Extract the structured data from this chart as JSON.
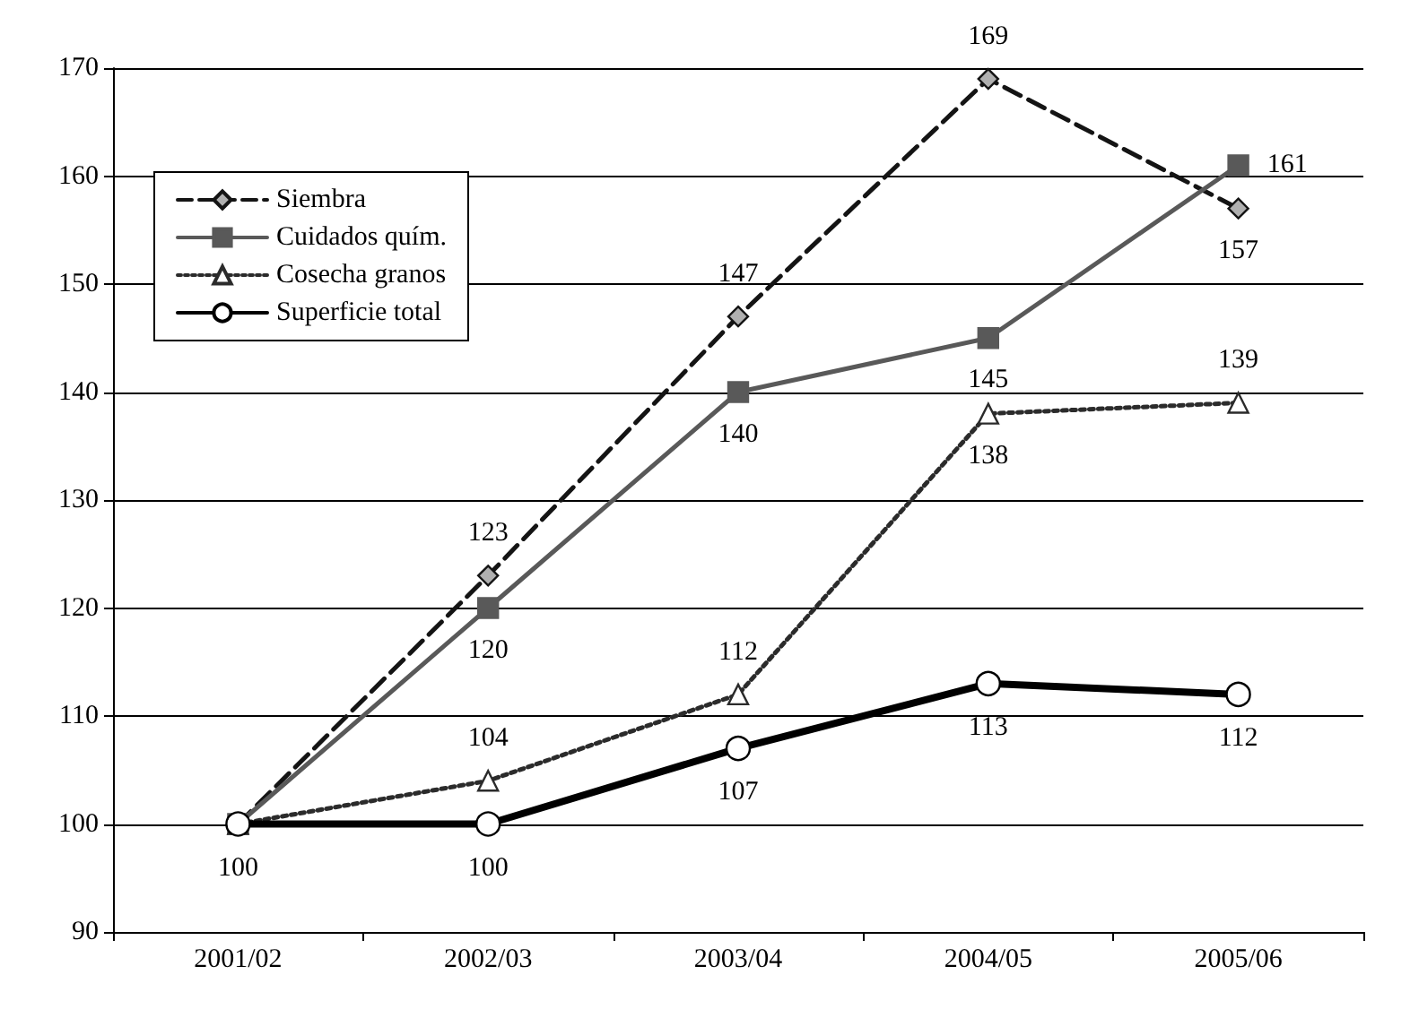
{
  "chart_data": {
    "type": "line",
    "categories": [
      "2001/02",
      "2002/03",
      "2003/04",
      "2004/05",
      "2005/06"
    ],
    "series": [
      {
        "name": "Siembra",
        "color": "#141414",
        "marker": "diamond",
        "line_style": "dashed",
        "values": [
          100,
          123,
          147,
          169,
          157
        ],
        "value_labels": [
          null,
          "123",
          "147",
          "169",
          "157"
        ]
      },
      {
        "name": "Cuidados quím.",
        "color": "#595959",
        "marker": "square",
        "line_style": "solid",
        "values": [
          100,
          120,
          140,
          145,
          161
        ],
        "value_labels": [
          null,
          "120",
          "140",
          "145",
          "161"
        ]
      },
      {
        "name": "Cosecha granos",
        "color": "#2b2b2b",
        "marker": "triangle",
        "line_style": "dotted",
        "values": [
          100,
          104,
          112,
          138,
          139
        ],
        "value_labels": [
          null,
          "104",
          "112",
          "138",
          "139"
        ]
      },
      {
        "name": "Superficie total",
        "color": "#000000",
        "marker": "circle",
        "line_style": "solid",
        "values": [
          100,
          100,
          107,
          113,
          112
        ],
        "value_labels": [
          "100",
          "100",
          "107",
          "113",
          "112"
        ]
      }
    ],
    "ylim": [
      90,
      170
    ],
    "yticks": [
      90,
      100,
      110,
      120,
      130,
      140,
      150,
      160,
      170
    ],
    "grid": "y",
    "legend": "top left"
  }
}
